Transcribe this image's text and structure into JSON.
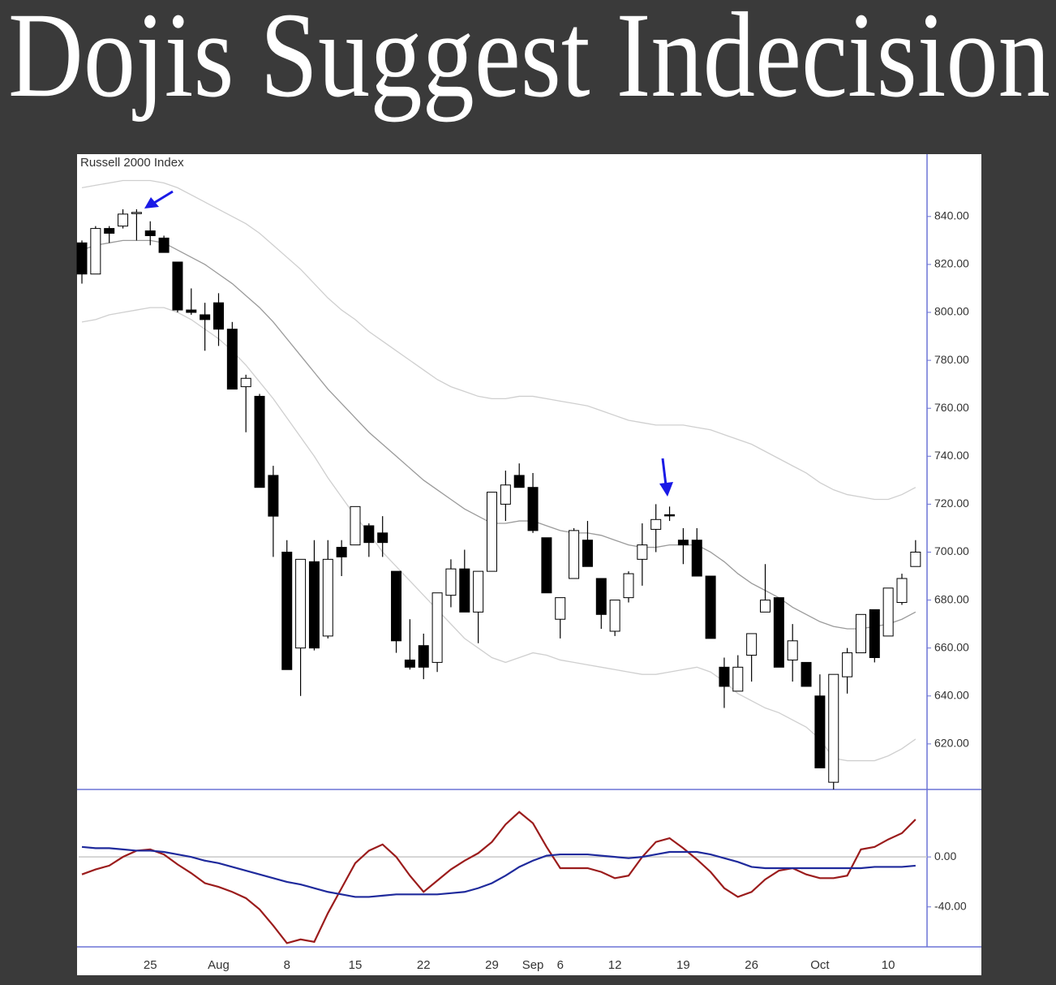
{
  "title": "Dojis Suggest Indecision",
  "chart_data": [
    {
      "type": "candlestick",
      "title": "Russell 2000 Index",
      "categories": [
        null,
        null,
        null,
        null,
        null,
        "25",
        null,
        null,
        null,
        null,
        "Aug",
        null,
        null,
        null,
        null,
        "8",
        null,
        null,
        null,
        null,
        "15",
        null,
        null,
        null,
        null,
        "22",
        null,
        null,
        null,
        null,
        "29",
        null,
        null,
        "Sep",
        null,
        "6",
        null,
        null,
        null,
        "12",
        null,
        null,
        null,
        null,
        "19",
        null,
        null,
        null,
        null,
        "26",
        null,
        null,
        null,
        null,
        "Oct",
        null,
        null,
        null,
        null,
        "10",
        null,
        null
      ],
      "open": [
        829,
        816,
        835,
        836,
        841.5,
        834,
        831,
        821,
        801,
        799,
        804,
        793,
        769,
        765,
        732,
        700,
        660,
        696,
        665,
        702,
        703,
        711,
        708,
        692,
        655,
        661,
        654,
        682,
        693,
        675,
        692,
        720,
        732,
        727,
        706,
        672,
        689,
        705,
        689,
        667,
        681,
        697,
        709.5,
        715.6,
        705,
        705,
        690,
        652,
        642,
        657,
        675,
        681,
        655,
        654,
        640,
        604,
        648,
        658,
        676,
        665,
        679,
        694
      ],
      "high": [
        830,
        836,
        836,
        843,
        843,
        838,
        832,
        821,
        810,
        804,
        808,
        796,
        774,
        766,
        736,
        705,
        697,
        705,
        705,
        705,
        719,
        712,
        715,
        692,
        672,
        666,
        683,
        697,
        701,
        692,
        725,
        734,
        737,
        733,
        706,
        681,
        710,
        713,
        689,
        680,
        692,
        712,
        720,
        719,
        710,
        710,
        690,
        656,
        657,
        666,
        695,
        681,
        670,
        654,
        649,
        649,
        660,
        674,
        676,
        685,
        691,
        705
      ],
      "low": [
        812,
        816,
        829,
        835,
        830,
        828,
        825,
        800,
        799,
        784,
        786,
        768,
        750,
        727,
        698,
        651,
        640,
        659,
        664,
        690,
        703,
        698,
        698,
        658,
        651,
        647,
        650,
        677,
        675,
        662,
        692,
        713,
        727,
        708,
        683,
        664,
        689,
        694,
        668,
        665,
        679,
        686,
        700,
        713,
        695,
        690,
        664,
        635,
        642,
        646,
        675,
        652,
        646,
        644,
        610,
        601,
        641,
        658,
        654,
        665,
        678,
        694
      ],
      "close": [
        816,
        835,
        833,
        841,
        841.7,
        832,
        825,
        801,
        800,
        797,
        793,
        768,
        772.5,
        727,
        715,
        651,
        697,
        660,
        697,
        698,
        719,
        704,
        704,
        663,
        652,
        652,
        683,
        693,
        675,
        692,
        725,
        728,
        727,
        709,
        683,
        681,
        709,
        694,
        674,
        680,
        691,
        703,
        713.6,
        715.2,
        703,
        690,
        664,
        644,
        652,
        666,
        680,
        652,
        663,
        644,
        610,
        649,
        658,
        674,
        656,
        685,
        689,
        700
      ],
      "up_color": "#ffffff",
      "down_color": "#000000",
      "overlays": [
        {
          "color": "#cfcfcf",
          "values": [
            852,
            853,
            854,
            855,
            855,
            855,
            854,
            852,
            849,
            846,
            843,
            840,
            837,
            833,
            828,
            823,
            818,
            812,
            806,
            801,
            797,
            792,
            788,
            784,
            780,
            776,
            772,
            769,
            767,
            765,
            764,
            764,
            765,
            765,
            764,
            763,
            762,
            761,
            759,
            757,
            755,
            754,
            753,
            753,
            753,
            752,
            751,
            749,
            747,
            745,
            742,
            739,
            736,
            733,
            729,
            726,
            724,
            723,
            722,
            722,
            724,
            727
          ]
        },
        {
          "color": "#9a9a9a",
          "values": [
            826,
            828,
            829,
            830,
            830,
            830,
            829,
            826,
            823,
            820,
            816,
            812,
            807,
            802,
            796,
            789,
            782,
            775,
            768,
            762,
            756,
            750,
            745,
            740,
            735,
            730,
            726,
            722,
            718,
            715,
            712,
            712,
            713,
            713,
            711,
            709,
            708,
            708,
            707,
            705,
            703,
            702,
            702,
            703,
            703,
            703,
            700,
            696,
            691,
            687,
            684,
            681,
            677,
            674,
            671,
            669,
            668,
            668,
            669,
            670,
            672,
            675
          ]
        },
        {
          "color": "#cfcfcf",
          "values": [
            796,
            797,
            799,
            800,
            801,
            802,
            802,
            800,
            797,
            793,
            789,
            784,
            778,
            771,
            764,
            756,
            748,
            740,
            731,
            723,
            715,
            708,
            700,
            694,
            688,
            682,
            676,
            670,
            664,
            660,
            656,
            654,
            656,
            658,
            657,
            655,
            654,
            653,
            652,
            651,
            650,
            649,
            649,
            650,
            651,
            652,
            650,
            646,
            641,
            638,
            635,
            633,
            630,
            627,
            622,
            614,
            613,
            613,
            613,
            615,
            618,
            622
          ]
        }
      ],
      "ylim": [
        601,
        866
      ],
      "yticks": [
        {
          "value": 620,
          "label": "620.00"
        },
        {
          "value": 640,
          "label": "640.00"
        },
        {
          "value": 660,
          "label": "660.00"
        },
        {
          "value": 680,
          "label": "680.00"
        },
        {
          "value": 700,
          "label": "700.00"
        },
        {
          "value": 720,
          "label": "720.00"
        },
        {
          "value": 740,
          "label": "740.00"
        },
        {
          "value": 760,
          "label": "760.00"
        },
        {
          "value": 780,
          "label": "780.00"
        },
        {
          "value": 800,
          "label": "800.00"
        },
        {
          "value": 820,
          "label": "820.00"
        },
        {
          "value": 840,
          "label": "840.00"
        }
      ]
    },
    {
      "type": "line",
      "series": [
        {
          "color": "#9b1c1c",
          "values": [
            -14,
            -10,
            -7,
            0,
            5,
            6,
            2,
            -6,
            -13,
            -21,
            -24,
            -28,
            -33,
            -42,
            -55,
            -69,
            -66,
            -68,
            -45,
            -25,
            -5,
            5,
            10,
            0,
            -15,
            -28,
            -19,
            -10,
            -3,
            3,
            12,
            26,
            36,
            27,
            8,
            -9,
            -9,
            -9,
            -12,
            -17,
            -15,
            0,
            12,
            15,
            7,
            -2,
            -12,
            -25,
            -32,
            -28,
            -18,
            -11,
            -9,
            -14,
            -17,
            -17,
            -15,
            6,
            8,
            14,
            19,
            30
          ]
        },
        {
          "color": "#1f2a9c",
          "values": [
            8,
            7,
            7,
            6,
            5,
            5,
            4,
            2,
            0,
            -3,
            -5,
            -8,
            -11,
            -14,
            -17,
            -20,
            -22,
            -25,
            -28,
            -30,
            -32,
            -32,
            -31,
            -30,
            -30,
            -30,
            -30,
            -29,
            -28,
            -25,
            -21,
            -15,
            -8,
            -3,
            1,
            2,
            2,
            2,
            1,
            0,
            -1,
            0,
            2,
            4,
            4,
            4,
            2,
            -1,
            -4,
            -8,
            -9,
            -9,
            -9,
            -9,
            -9,
            -9,
            -9,
            -9,
            -8,
            -8,
            -8,
            -7
          ]
        }
      ],
      "reference_line": 0,
      "ylim": [
        -72,
        54
      ],
      "yticks": [
        {
          "value": 0,
          "label": "0.00"
        },
        {
          "value": -40,
          "label": "-40.00"
        }
      ]
    }
  ]
}
